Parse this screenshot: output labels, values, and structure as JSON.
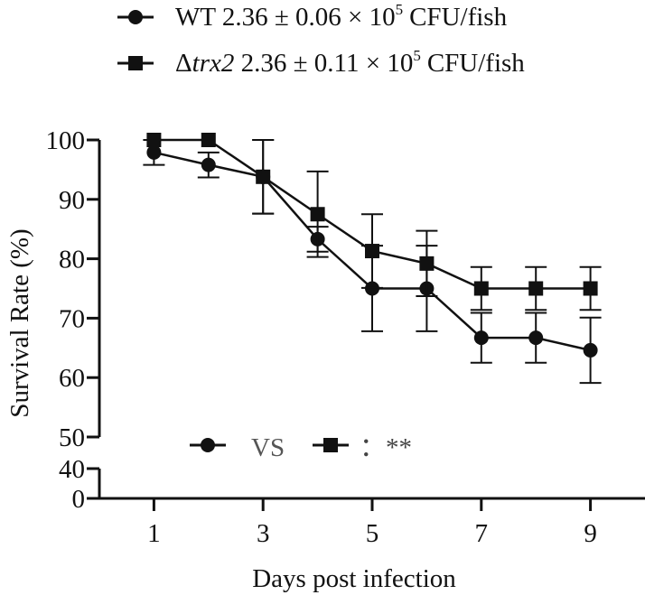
{
  "chart_data": {
    "type": "line",
    "xlabel": "Days post infection",
    "ylabel": "Survival Rate (%)",
    "x_ticks": [
      1,
      3,
      5,
      7,
      9
    ],
    "y_ticks_upper": [
      50,
      60,
      70,
      80,
      90,
      100
    ],
    "y_ticks_lower": [
      0,
      40
    ],
    "ylim_upper": [
      50,
      100
    ],
    "ylim_lower": [
      0,
      40
    ],
    "xlim": [
      0,
      10
    ],
    "y_axis_break": [
      40,
      50
    ],
    "colors": {
      "line": "#111111",
      "text": "#111111"
    },
    "series": [
      {
        "name": "WT",
        "marker": "circle",
        "legend": {
          "strain": "WT",
          "value": "2.36 ± 0.06 × 10",
          "exponent": "5",
          "unit": "CFU/fish"
        },
        "x": [
          1,
          2,
          3,
          4,
          5,
          6,
          7,
          8,
          9
        ],
        "y": [
          97.9,
          95.8,
          93.8,
          83.3,
          75.0,
          75.0,
          66.7,
          66.7,
          64.6
        ],
        "err": [
          2.1,
          2.1,
          6.2,
          2.1,
          7.2,
          7.2,
          4.2,
          4.2,
          5.5
        ]
      },
      {
        "name": "Δtrx2",
        "marker": "square",
        "legend": {
          "delta": "Δ",
          "strain": "trx2",
          "value": "2.36 ± 0.11 × 10",
          "exponent": "5",
          "unit": "CFU/fish"
        },
        "x": [
          1,
          2,
          3,
          4,
          5,
          6,
          7,
          8,
          9
        ],
        "y": [
          100,
          100,
          93.8,
          87.5,
          81.3,
          79.2,
          75.0,
          75.0,
          75.0
        ],
        "err": [
          0,
          0,
          6.2,
          7.2,
          6.2,
          5.5,
          3.6,
          3.6,
          3.6
        ]
      }
    ],
    "annotation": {
      "vs": "VS",
      "significance": "：**"
    }
  }
}
